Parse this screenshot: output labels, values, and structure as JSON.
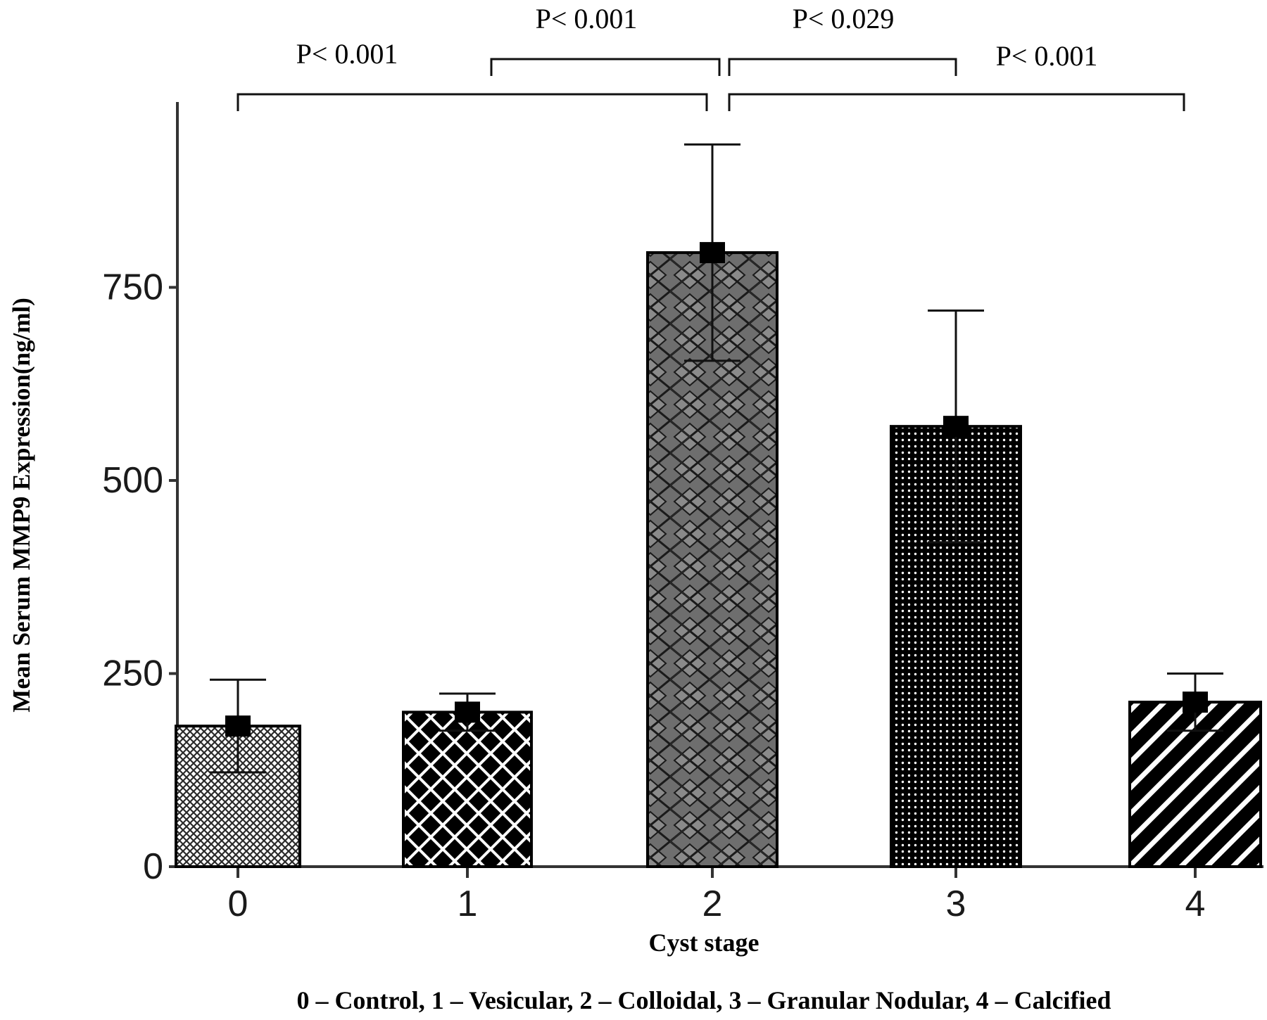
{
  "chart_data": {
    "type": "bar",
    "title": "",
    "xlabel": "Cyst stage",
    "ylabel": "Mean Serum MMP9 Expression(ng/ml)",
    "caption": "0 – Control, 1 – Vesicular, 2 – Colloidal, 3 – Granular Nodular, 4 – Calcified",
    "categories": [
      "0",
      "1",
      "2",
      "3",
      "4"
    ],
    "values": [
      182,
      200,
      795,
      570,
      213
    ],
    "errors": [
      60,
      24,
      140,
      150,
      37
    ],
    "ylim": [
      0,
      990
    ],
    "yticks": [
      0,
      250,
      500,
      750
    ],
    "ytick_labels": [
      "0",
      "250",
      "500",
      "750"
    ],
    "grid": false,
    "bar_patterns": [
      "fine-check",
      "lattice",
      "diamond",
      "dots",
      "diagonal"
    ],
    "significance": [
      {
        "from": "0",
        "to": "2",
        "label": "P< 0.001"
      },
      {
        "from": "1",
        "to": "2",
        "label": "P< 0.001"
      },
      {
        "from": "2",
        "to": "3",
        "label": "P< 0.029"
      },
      {
        "from": "2",
        "to": "4",
        "label": "P< 0.001"
      }
    ],
    "colors": {
      "axis": "#333333",
      "bar_outline": "#000000",
      "diamond_fill": "#7a7a7a",
      "text": "#000000"
    }
  }
}
